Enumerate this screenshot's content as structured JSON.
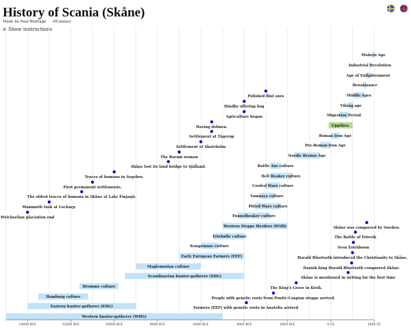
{
  "header": {
    "title": "History of Scania (Skåne)",
    "made_by": "Made by Paul Belfrage",
    "contact": "Contact",
    "show_instructions": "≡ Show instructions"
  },
  "languages": [
    {
      "name": "Swedish",
      "icon": "sweden-flag-icon"
    },
    {
      "name": "English",
      "icon": "uk-flag-icon"
    }
  ],
  "colors": {
    "period": "#c2e2f8",
    "highlight_period": "#b5db8a",
    "event_dot": "#0000cc",
    "grid": "#e6e6e6"
  },
  "chart_data": {
    "type": "timeline",
    "xlim": [
      -15000,
      2100
    ],
    "x_ticks": [
      {
        "value": -14000,
        "label": "14000 BCE"
      },
      {
        "value": -12000,
        "label": "12000 BCE"
      },
      {
        "value": -10000,
        "label": "10000 BCE"
      },
      {
        "value": -8000,
        "label": "8000 BCE"
      },
      {
        "value": -6000,
        "label": "6000 BCE"
      },
      {
        "value": -4000,
        "label": "4000 BCE"
      },
      {
        "value": -2000,
        "label": "2000 BCE"
      },
      {
        "value": 0,
        "label": "0 CE"
      },
      {
        "value": 2000,
        "label": "2000 CE"
      }
    ],
    "grid": true,
    "periods": [
      {
        "label": "Western hunter-gatherer (WHG)",
        "start": -15000,
        "end": -5000
      },
      {
        "label": "Eastern hunter-gatherer (EHG)",
        "start": -14000,
        "end": -9000
      },
      {
        "label": "Hamburg culture",
        "start": -13500,
        "end": -11200
      },
      {
        "label": "Bromme culture",
        "start": -11600,
        "end": -9800
      },
      {
        "label": "Scandinavian hunter-gatherer (SHG)",
        "start": -9500,
        "end": -4000
      },
      {
        "label": "Maglemosian culture",
        "start": -9000,
        "end": -6000
      },
      {
        "label": "Early European Farmers (EEF)",
        "start": -7000,
        "end": -4000
      },
      {
        "label": "Kongemose culture",
        "start": -6000,
        "end": -5200
      },
      {
        "label": "Ertebølle culture",
        "start": -5400,
        "end": -3950
      },
      {
        "label": "Western Steppe Herders (WSH)",
        "start": -5000,
        "end": -2000
      },
      {
        "label": "Funnelbeaker culture",
        "start": -4300,
        "end": -2800
      },
      {
        "label": "Pitted Ware culture",
        "start": -3500,
        "end": -2300
      },
      {
        "label": "Yamnaya culture",
        "start": -3300,
        "end": -2600
      },
      {
        "label": "Corded Ware culture",
        "start": -3000,
        "end": -2350
      },
      {
        "label": "Bell Beaker culture",
        "start": -2800,
        "end": -1800
      },
      {
        "label": "Battle Axe culture",
        "start": -2800,
        "end": -2300
      },
      {
        "label": "Nordic Bronze Age",
        "start": -1700,
        "end": -500
      },
      {
        "label": "Pre-Roman Iron Age",
        "start": -500,
        "end": 0
      },
      {
        "label": "Roman Iron Age",
        "start": 0,
        "end": 400
      },
      {
        "label": "Uppåkra.",
        "start": -100,
        "end": 1000,
        "highlight": true
      },
      {
        "label": "Migration Period",
        "start": 400,
        "end": 800
      },
      {
        "label": "Viking age",
        "start": 800,
        "end": 1050
      },
      {
        "label": "Middle Ages",
        "start": 1050,
        "end": 1536
      },
      {
        "label": "Renaissance",
        "start": 1500,
        "end": 1650
      },
      {
        "label": "Age of Enlightenment",
        "start": 1650,
        "end": 1800
      },
      {
        "label": "Industrial Revolution",
        "start": 1760,
        "end": 1840
      },
      {
        "label": "Modern Age",
        "start": 1900,
        "end": 2023
      }
    ],
    "events": [
      {
        "label": "Weichselian glaciation end",
        "year": -14000
      },
      {
        "label": "Mammoth tusk at Lockarp.",
        "year": -13000
      },
      {
        "label": "The oldest traces of humans in Skåne at Lake Finjasjö.",
        "year": -11500
      },
      {
        "label": "First permanent settlements.",
        "year": -11000
      },
      {
        "label": "Traces of humans in Segebro.",
        "year": -10000
      },
      {
        "label": "Skåne lost its land bridge to Själland.",
        "year": -7500
      },
      {
        "label": "The Barum woman",
        "year": -7000
      },
      {
        "label": "Settlement at Skateholm",
        "year": -6000
      },
      {
        "label": "Settlement at Tågerup",
        "year": -5500
      },
      {
        "label": "Having dolmen.",
        "year": -5500
      },
      {
        "label": "Agriculture begun",
        "year": -4000
      },
      {
        "label": "Hindby offering bog",
        "year": -4000
      },
      {
        "label": "Polished flint axes",
        "year": -3000
      },
      {
        "label": "Farmers (EEF) with genetic roots in Anatolia arrived.",
        "year": -3900
      },
      {
        "label": "People with genetic roots from Pontic-Caspian steppe arrived.",
        "year": -2650
      },
      {
        "label": "The King's Grave in Kivik.",
        "year": -1600
      },
      {
        "label": "Skåne is mentioned in writing for the first time",
        "year": 800
      },
      {
        "label": "Danish king Harald Bluetooth conquered Skåne.",
        "year": 960
      },
      {
        "label": "Harald Bluetooth introduced the Christianity to Skåne.",
        "year": 1000
      },
      {
        "label": "Sven Estridsson",
        "year": 1040
      },
      {
        "label": "The Battle of Fotevik",
        "year": 1134
      },
      {
        "label": "Skåne was conquered by Sweden.",
        "year": 1658
      }
    ]
  }
}
